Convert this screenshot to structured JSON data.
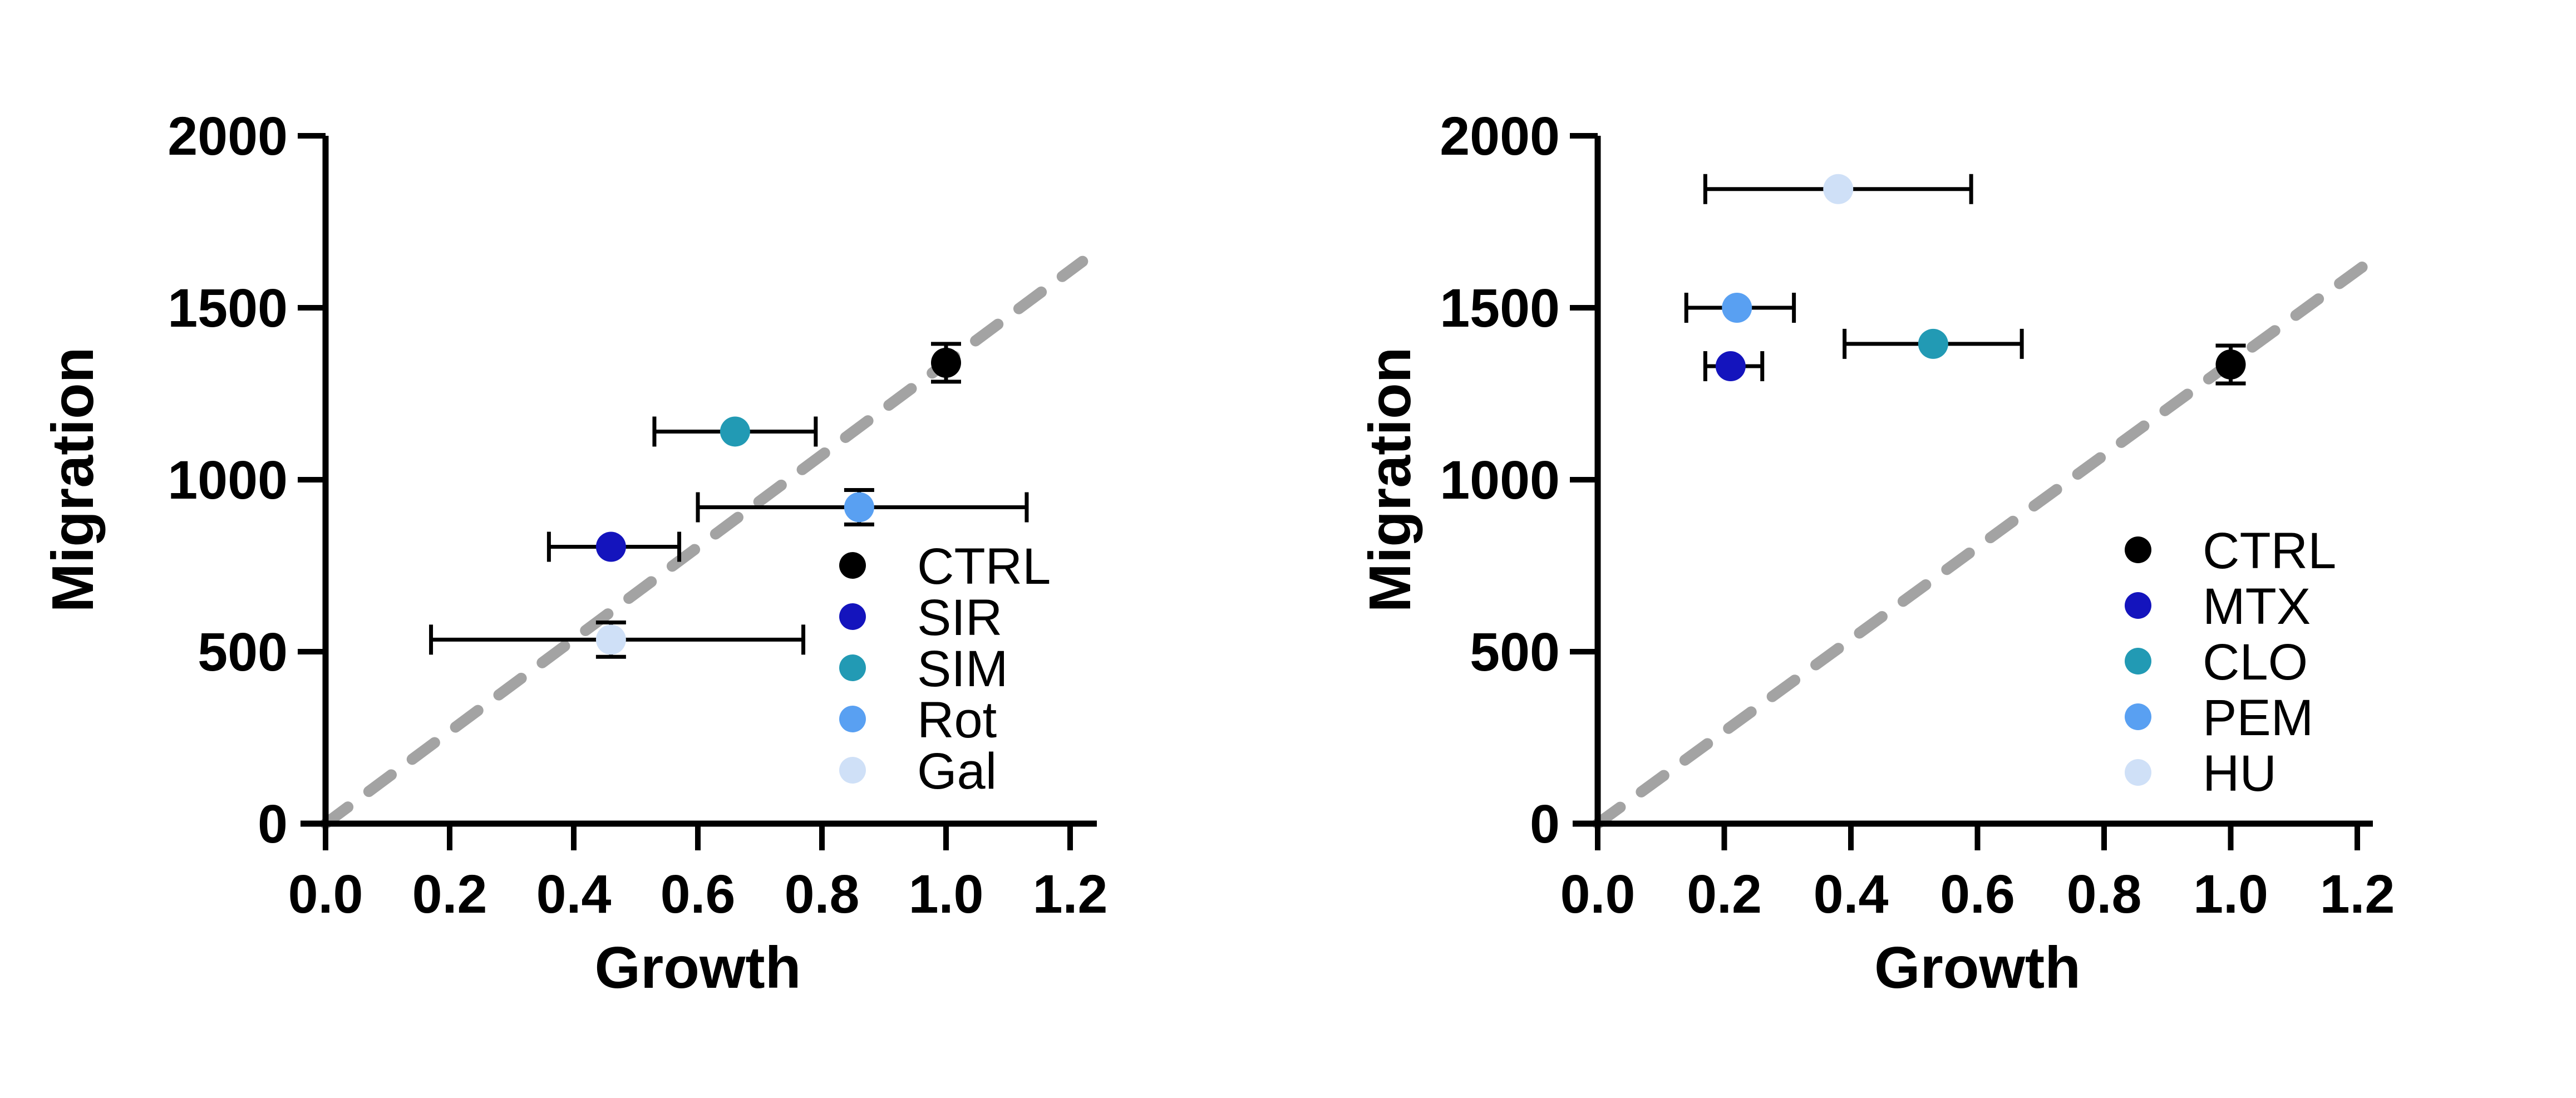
{
  "figure_background": "#ffffff",
  "axis_color": "#000000",
  "error_bar_color": "#000000",
  "chart_data": [
    {
      "type": "scatter",
      "title": "",
      "xlabel": "Growth",
      "ylabel": "Migration",
      "xlim": [
        0,
        1.2
      ],
      "ylim": [
        0,
        2000
      ],
      "grid": false,
      "xticks": {
        "values": [
          0,
          0.2,
          0.4,
          0.6,
          0.8,
          1.0,
          1.2
        ],
        "labels": [
          "0.0",
          "0.2",
          "0.4",
          "0.6",
          "0.8",
          "1.0",
          "1.2"
        ]
      },
      "yticks": {
        "values": [
          0,
          500,
          1000,
          1500,
          2000
        ],
        "labels": [
          "0",
          "500",
          "1000",
          "1500",
          "2000"
        ]
      },
      "identity_line": {
        "style": "dashed",
        "color": "#a3a3a3",
        "from_x": 0,
        "to_x": 1.22,
        "slope": 1340
      },
      "legend": {
        "position": "inside-bottom-right",
        "entries": [
          "CTRL",
          "SIR",
          "SIM",
          "Rot",
          "Gal"
        ]
      },
      "series": [
        {
          "name": "CTRL",
          "color": "#000000",
          "x": 1.0,
          "y": 1340,
          "xerr": null,
          "yerr": 55
        },
        {
          "name": "SIR",
          "color": "#1414bd",
          "x": 0.46,
          "y": 805,
          "xerr": [
            0.36,
            0.57
          ],
          "yerr": null
        },
        {
          "name": "SIM",
          "color": "#229ab4",
          "x": 0.66,
          "y": 1140,
          "xerr": [
            0.53,
            0.79
          ],
          "yerr": null
        },
        {
          "name": "Rot",
          "color": "#59a0f2",
          "x": 0.86,
          "y": 920,
          "xerr": [
            0.6,
            1.13
          ],
          "yerr": 50
        },
        {
          "name": "Gal",
          "color": "#cfe0f7",
          "x": 0.46,
          "y": 535,
          "xerr": [
            0.17,
            0.77
          ],
          "yerr": 50
        }
      ]
    },
    {
      "type": "scatter",
      "title": "",
      "xlabel": "Growth",
      "ylabel": "Migration",
      "xlim": [
        0,
        1.2
      ],
      "ylim": [
        0,
        2000
      ],
      "grid": false,
      "xticks": {
        "values": [
          0,
          0.2,
          0.4,
          0.6,
          0.8,
          1.0,
          1.2
        ],
        "labels": [
          "0.0",
          "0.2",
          "0.4",
          "0.6",
          "0.8",
          "1.0",
          "1.2"
        ]
      },
      "yticks": {
        "values": [
          0,
          500,
          1000,
          1500,
          2000
        ],
        "labels": [
          "0",
          "500",
          "1000",
          "1500",
          "2000"
        ]
      },
      "identity_line": {
        "style": "dashed",
        "color": "#a3a3a3",
        "from_x": 0,
        "to_x": 1.22,
        "slope": 1340
      },
      "legend": {
        "position": "inside-bottom-right",
        "entries": [
          "CTRL",
          "MTX",
          "CLO",
          "PEM",
          "HU"
        ]
      },
      "series": [
        {
          "name": "CTRL",
          "color": "#000000",
          "x": 1.0,
          "y": 1335,
          "xerr": null,
          "yerr": 55
        },
        {
          "name": "MTX",
          "color": "#1414bd",
          "x": 0.21,
          "y": 1330,
          "xerr": [
            0.17,
            0.26
          ],
          "yerr": null
        },
        {
          "name": "CLO",
          "color": "#229ab4",
          "x": 0.53,
          "y": 1395,
          "xerr": [
            0.39,
            0.67
          ],
          "yerr": null
        },
        {
          "name": "PEM",
          "color": "#59a0f2",
          "x": 0.22,
          "y": 1500,
          "xerr": [
            0.14,
            0.31
          ],
          "yerr": null
        },
        {
          "name": "HU",
          "color": "#cfe0f7",
          "x": 0.38,
          "y": 1845,
          "xerr": [
            0.17,
            0.59
          ],
          "yerr": null
        }
      ]
    }
  ]
}
